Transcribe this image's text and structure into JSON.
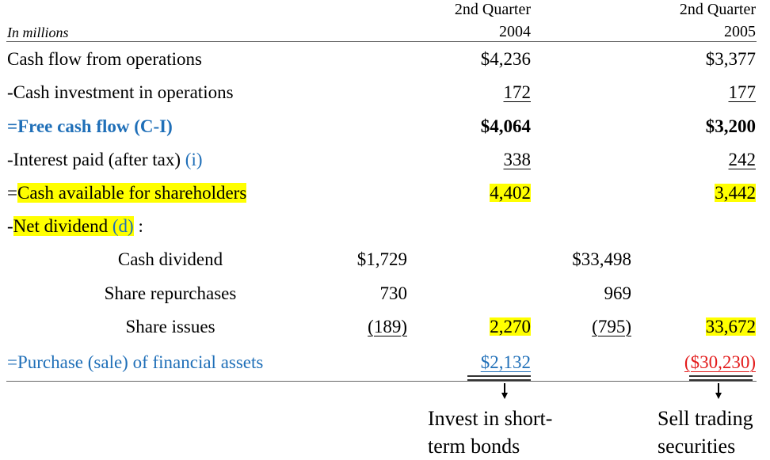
{
  "header": {
    "units": "In millions",
    "col2004_line1": "2nd Quarter",
    "col2004_line2": "2004",
    "col2005_line1": "2nd Quarter",
    "col2005_line2": "2005"
  },
  "rows": {
    "cfo": {
      "label": "Cash flow from operations",
      "v2004": "$4,236",
      "v2005": "$3,377"
    },
    "cash_inv": {
      "label": "-Cash investment in operations",
      "v2004": "172",
      "v2005": "177"
    },
    "fcf": {
      "label": "=Free cash flow (C-I)",
      "v2004": "$4,064",
      "v2005": "$3,200"
    },
    "interest": {
      "label_prefix": "-Interest paid (after tax) ",
      "label_symbol": "(i)",
      "v2004": "338",
      "v2005": "242"
    },
    "cash_avail": {
      "label_prefix": "=",
      "label_text": "Cash available for shareholders",
      "v2004": "4,402",
      "v2005": "3,442"
    },
    "net_div": {
      "label_prefix": "-",
      "label_text": "Net dividend ",
      "label_symbol": "(d)",
      "label_suffix": " :"
    },
    "cash_div": {
      "label": "Cash dividend",
      "sub2004": "$1,729",
      "sub2005": "$33,498"
    },
    "repurchase": {
      "label": "Share repurchases",
      "sub2004": "730",
      "sub2005": "969"
    },
    "issues": {
      "label": "Share issues",
      "sub2004": "(189)",
      "v2004": "2,270",
      "sub2005": "(795)",
      "v2005": "33,672"
    },
    "purchase": {
      "label": "=Purchase (sale) of financial assets",
      "v2004": "$2,132",
      "v2005": "($30,230)"
    }
  },
  "notes": {
    "n2004_line1": "Invest in short-",
    "n2004_line2": "term bonds",
    "n2005_line1": "Sell trading",
    "n2005_line2": "securities"
  }
}
